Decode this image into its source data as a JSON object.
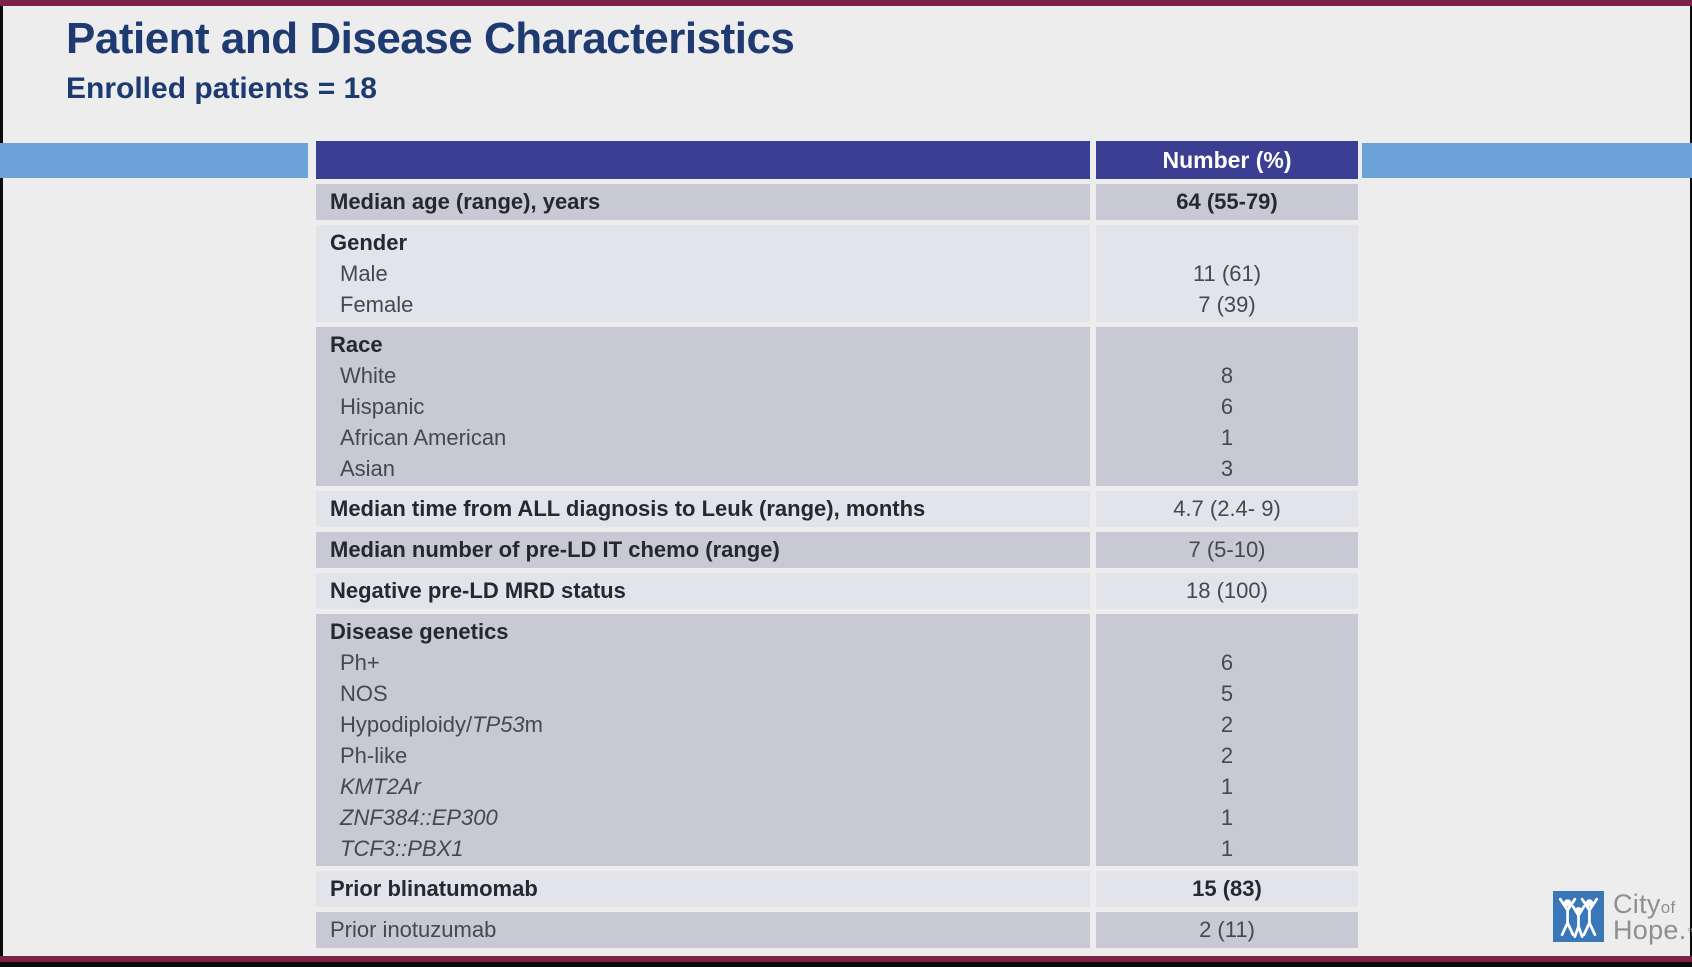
{
  "slide": {
    "title": "Patient and Disease Characteristics",
    "subtitle": "Enrolled patients = 18"
  },
  "table": {
    "header": {
      "value_label": "Number (%)"
    },
    "rows": [
      {
        "shade": "dark",
        "lines": [
          {
            "parts": [
              {
                "text": "Median age (range), years",
                "bold": true
              }
            ],
            "value": "64 (55-79)",
            "value_bold": true
          }
        ]
      },
      {
        "shade": "light",
        "lines": [
          {
            "parts": [
              {
                "text": "Gender",
                "bold": true
              }
            ],
            "value": ""
          },
          {
            "parts": [
              {
                "text": "Male"
              }
            ],
            "value": "11 (61)",
            "indent": true
          },
          {
            "parts": [
              {
                "text": "Female"
              }
            ],
            "value": "7 (39)",
            "indent": true
          }
        ]
      },
      {
        "shade": "dark",
        "lines": [
          {
            "parts": [
              {
                "text": "Race",
                "bold": true
              }
            ],
            "value": ""
          },
          {
            "parts": [
              {
                "text": "White"
              }
            ],
            "value": "8",
            "indent": true
          },
          {
            "parts": [
              {
                "text": "Hispanic"
              }
            ],
            "value": "6",
            "indent": true
          },
          {
            "parts": [
              {
                "text": "African American"
              }
            ],
            "value": "1",
            "indent": true
          },
          {
            "parts": [
              {
                "text": "Asian"
              }
            ],
            "value": "3",
            "indent": true
          }
        ]
      },
      {
        "shade": "light",
        "lines": [
          {
            "parts": [
              {
                "text": "Median time from ALL diagnosis to Leuk (range), months",
                "bold": true
              }
            ],
            "value": "4.7 (2.4- 9)"
          }
        ]
      },
      {
        "shade": "dark",
        "lines": [
          {
            "parts": [
              {
                "text": "Median number of pre-LD IT chemo (range)",
                "bold": true
              }
            ],
            "value": "7 (5-10)"
          }
        ]
      },
      {
        "shade": "light",
        "lines": [
          {
            "parts": [
              {
                "text": "Negative pre-LD MRD status",
                "bold": true
              }
            ],
            "value": "18 (100)"
          }
        ]
      },
      {
        "shade": "dark",
        "lines": [
          {
            "parts": [
              {
                "text": "Disease genetics",
                "bold": true
              }
            ],
            "value": ""
          },
          {
            "parts": [
              {
                "text": "Ph+"
              }
            ],
            "value": "6",
            "indent": true
          },
          {
            "parts": [
              {
                "text": "NOS"
              }
            ],
            "value": "5",
            "indent": true
          },
          {
            "parts": [
              {
                "text": "Hypodiploidy/"
              },
              {
                "text": "TP53",
                "italic": true
              },
              {
                "text": "m"
              }
            ],
            "value": "2",
            "indent": true
          },
          {
            "parts": [
              {
                "text": "Ph-like"
              }
            ],
            "value": "2",
            "indent": true
          },
          {
            "parts": [
              {
                "text": "KMT2Ar",
                "italic": true
              }
            ],
            "value": "1",
            "indent": true
          },
          {
            "parts": [
              {
                "text": "ZNF384::EP300",
                "italic": true
              }
            ],
            "value": "1",
            "indent": true
          },
          {
            "parts": [
              {
                "text": "TCF3::PBX1",
                "italic": true
              }
            ],
            "value": "1",
            "indent": true
          }
        ]
      },
      {
        "shade": "light",
        "lines": [
          {
            "parts": [
              {
                "text": "Prior blinatumomab",
                "bold": true
              }
            ],
            "value": "15 (83)",
            "value_bold": true
          }
        ]
      },
      {
        "shade": "dark",
        "lines": [
          {
            "parts": [
              {
                "text": "Prior inotuzumab"
              }
            ],
            "value": "2 (11)"
          }
        ]
      }
    ]
  },
  "logo": {
    "line1": "City",
    "line1_suffix": "of",
    "line2": "Hope.",
    "trademark": "™"
  },
  "colors": {
    "maroon": "#7b2346",
    "navy": "#1e3a70",
    "header_blue": "#3b3e92",
    "band_blue": "#6ba3d9",
    "row_dark": "#c9c9d5",
    "row_light": "#e3e3ea",
    "label_bold": "#27272f",
    "label_regular": "#47474f",
    "logo_blue": "#3a77b9",
    "logo_gray": "#8f8f8f"
  }
}
